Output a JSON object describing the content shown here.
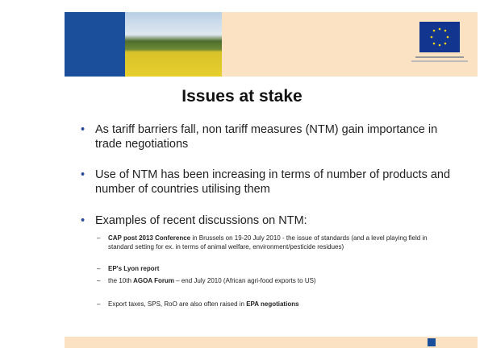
{
  "title": "Issues at stake",
  "bullets": [
    "As tariff barriers fall, non tariff measures (NTM) gain importance in trade negotiations",
    "Use of NTM has been increasing in terms of number of products and number of countries utilising them",
    "Examples of recent discussions on NTM:"
  ],
  "sub_bullets": [
    [
      {
        "text": "CAP post 2013 Conference",
        "bold": true
      },
      {
        "text": " in Brussels on 19-20 July 2010 - the issue of standards (and a level playing field in standard setting for ex. in terms of animal welfare, environment/pesticide residues)",
        "bold": false
      }
    ],
    [
      {
        "text": "EP's Lyon report",
        "bold": true
      }
    ],
    [
      {
        "text": "the 10th ",
        "bold": false
      },
      {
        "text": "AGOA Forum",
        "bold": true
      },
      {
        "text": " – end July 2010 (African agri-food exports to US)",
        "bold": false
      }
    ],
    [
      {
        "text": "Export taxes, SPS, RoO are also often raised in ",
        "bold": false
      },
      {
        "text": "EPA negotiations",
        "bold": true
      }
    ]
  ]
}
